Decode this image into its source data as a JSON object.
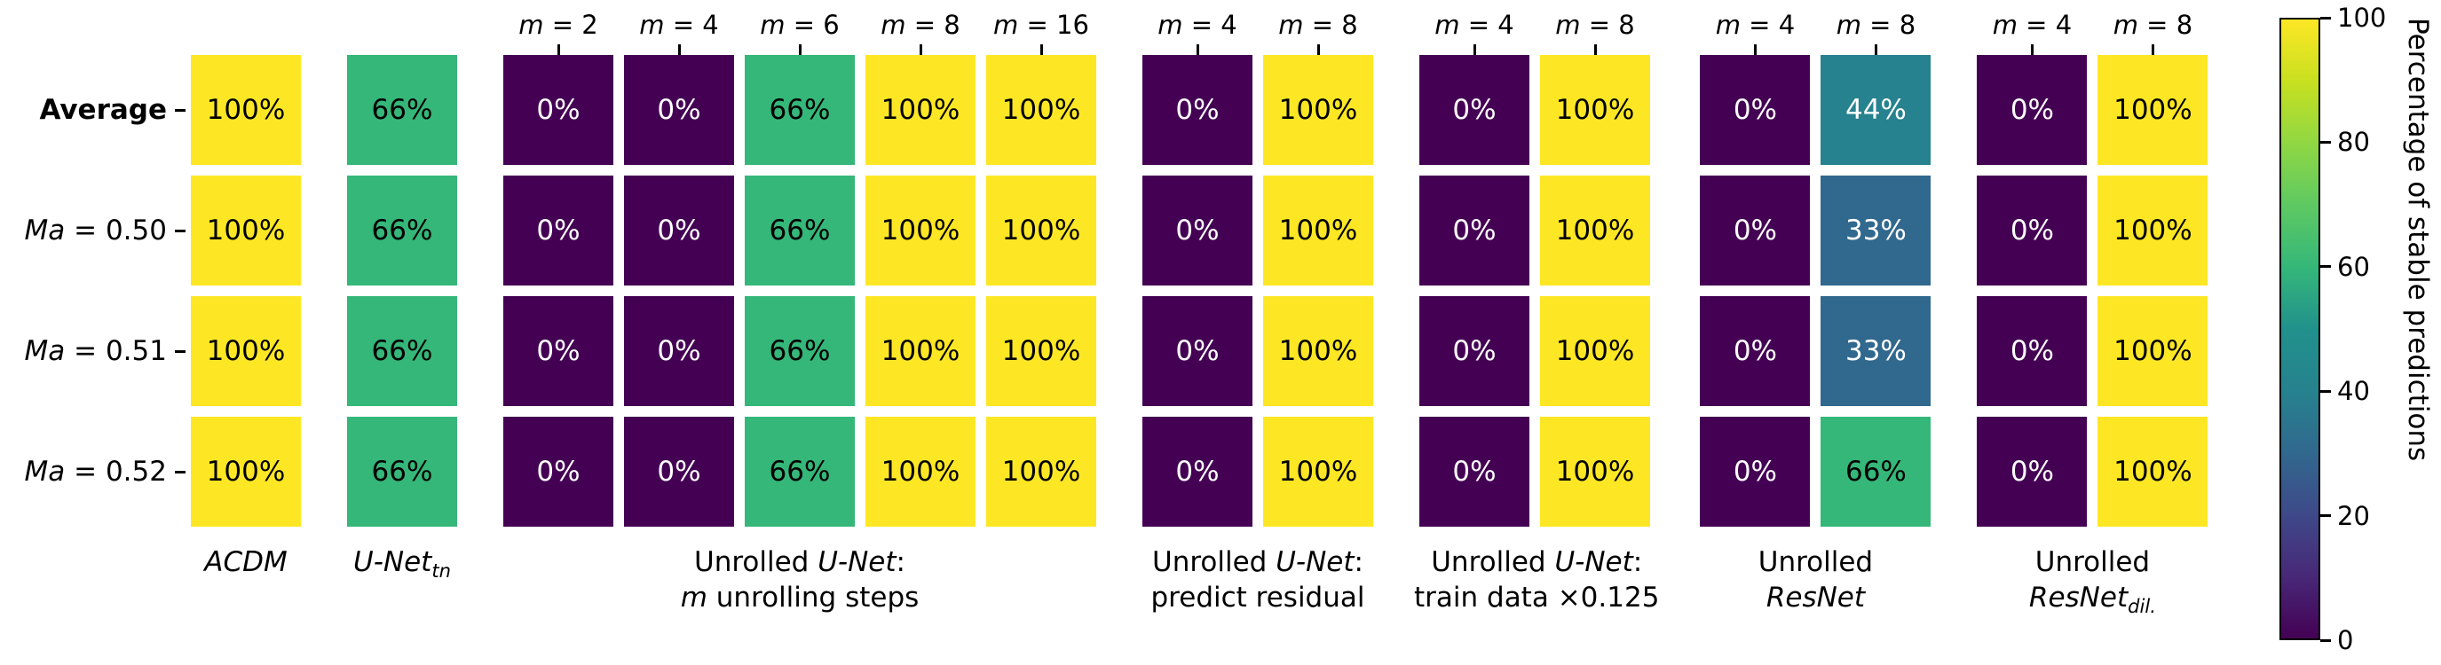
{
  "chart_data": {
    "type": "heatmap",
    "title": "",
    "value_suffix": "%",
    "colormap": "viridis",
    "rows": [
      {
        "name": "Average",
        "segments": [
          {
            "t": "Average",
            "b": true
          }
        ]
      },
      {
        "name": "Ma = 0.50",
        "segments": [
          {
            "t": "Ma",
            "i": true
          },
          {
            "t": " = 0.50"
          }
        ]
      },
      {
        "name": "Ma = 0.51",
        "segments": [
          {
            "t": "Ma",
            "i": true
          },
          {
            "t": " = 0.51"
          }
        ]
      },
      {
        "name": "Ma = 0.52",
        "segments": [
          {
            "t": "Ma",
            "i": true
          },
          {
            "t": " = 0.52"
          }
        ]
      }
    ],
    "groups": [
      {
        "id": "acdm",
        "name": "ACDM",
        "label_lines": [
          [
            {
              "t": "ACDM",
              "i": true
            }
          ]
        ],
        "columns": [
          {
            "name": "ACDM",
            "header": null,
            "values": [
              100,
              100,
              100,
              100
            ]
          }
        ]
      },
      {
        "id": "unet-tn",
        "name": "U-Net tn",
        "label_lines": [
          [
            {
              "t": "U-Net",
              "i": true
            },
            {
              "t": "tn",
              "i": true,
              "sub": true
            }
          ]
        ],
        "columns": [
          {
            "name": "U-Net tn",
            "header": null,
            "values": [
              66,
              66,
              66,
              66
            ]
          }
        ]
      },
      {
        "id": "unrolled-unet-steps",
        "name": "Unrolled U-Net: m unrolling steps",
        "label_lines": [
          [
            {
              "t": "Unrolled "
            },
            {
              "t": "U-Net",
              "i": true
            },
            {
              "t": ":"
            }
          ],
          [
            {
              "t": "m",
              "i": true
            },
            {
              "t": " unrolling steps"
            }
          ]
        ],
        "columns": [
          {
            "name": "m = 2",
            "header": [
              {
                "t": "m",
                "i": true
              },
              {
                "t": " = 2"
              }
            ],
            "values": [
              0,
              0,
              0,
              0
            ]
          },
          {
            "name": "m = 4",
            "header": [
              {
                "t": "m",
                "i": true
              },
              {
                "t": " = 4"
              }
            ],
            "values": [
              0,
              0,
              0,
              0
            ]
          },
          {
            "name": "m = 6",
            "header": [
              {
                "t": "m",
                "i": true
              },
              {
                "t": " = 6"
              }
            ],
            "values": [
              66,
              66,
              66,
              66
            ]
          },
          {
            "name": "m = 8",
            "header": [
              {
                "t": "m",
                "i": true
              },
              {
                "t": " = 8"
              }
            ],
            "values": [
              100,
              100,
              100,
              100
            ]
          },
          {
            "name": "m = 16",
            "header": [
              {
                "t": "m",
                "i": true
              },
              {
                "t": " = 16"
              }
            ],
            "values": [
              100,
              100,
              100,
              100
            ]
          }
        ]
      },
      {
        "id": "unrolled-unet-residual",
        "name": "Unrolled U-Net: predict residual",
        "label_lines": [
          [
            {
              "t": "Unrolled "
            },
            {
              "t": "U-Net",
              "i": true
            },
            {
              "t": ":"
            }
          ],
          [
            {
              "t": "predict residual"
            }
          ]
        ],
        "columns": [
          {
            "name": "m = 4",
            "header": [
              {
                "t": "m",
                "i": true
              },
              {
                "t": " = 4"
              }
            ],
            "values": [
              0,
              0,
              0,
              0
            ]
          },
          {
            "name": "m = 8",
            "header": [
              {
                "t": "m",
                "i": true
              },
              {
                "t": " = 8"
              }
            ],
            "values": [
              100,
              100,
              100,
              100
            ]
          }
        ]
      },
      {
        "id": "unrolled-unet-traindata",
        "name": "Unrolled U-Net: train data ×0.125",
        "label_lines": [
          [
            {
              "t": "Unrolled "
            },
            {
              "t": "U-Net",
              "i": true
            },
            {
              "t": ":"
            }
          ],
          [
            {
              "t": "train data ×0.125"
            }
          ]
        ],
        "columns": [
          {
            "name": "m = 4",
            "header": [
              {
                "t": "m",
                "i": true
              },
              {
                "t": " = 4"
              }
            ],
            "values": [
              0,
              0,
              0,
              0
            ]
          },
          {
            "name": "m = 8",
            "header": [
              {
                "t": "m",
                "i": true
              },
              {
                "t": " = 8"
              }
            ],
            "values": [
              100,
              100,
              100,
              100
            ]
          }
        ]
      },
      {
        "id": "unrolled-resnet",
        "name": "Unrolled ResNet",
        "label_lines": [
          [
            {
              "t": "Unrolled"
            }
          ],
          [
            {
              "t": "ResNet",
              "i": true
            }
          ]
        ],
        "columns": [
          {
            "name": "m = 4",
            "header": [
              {
                "t": "m",
                "i": true
              },
              {
                "t": " = 4"
              }
            ],
            "values": [
              0,
              0,
              0,
              0
            ]
          },
          {
            "name": "m = 8",
            "header": [
              {
                "t": "m",
                "i": true
              },
              {
                "t": " = 8"
              }
            ],
            "values": [
              44,
              33,
              33,
              66
            ]
          }
        ]
      },
      {
        "id": "unrolled-resnet-dil",
        "name": "Unrolled ResNet dil.",
        "label_lines": [
          [
            {
              "t": "Unrolled"
            }
          ],
          [
            {
              "t": "ResNet",
              "i": true
            },
            {
              "t": "dil.",
              "i": true,
              "sub": true
            }
          ]
        ],
        "columns": [
          {
            "name": "m = 4",
            "header": [
              {
                "t": "m",
                "i": true
              },
              {
                "t": " = 4"
              }
            ],
            "values": [
              0,
              0,
              0,
              0
            ]
          },
          {
            "name": "m = 8",
            "header": [
              {
                "t": "m",
                "i": true
              },
              {
                "t": " = 8"
              }
            ],
            "values": [
              100,
              100,
              100,
              100
            ]
          }
        ]
      }
    ],
    "colors": {
      "0": "#440154",
      "33": "#31688e",
      "44": "#26828e",
      "66": "#35b779",
      "100": "#fde725"
    },
    "text_colors": {
      "dark_cell": "#ffffff",
      "light_cell": "#000000"
    },
    "colorbar": {
      "label": "Percentage of stable predictions",
      "min": 0,
      "max": 100,
      "ticks": [
        0,
        20,
        40,
        60,
        80,
        100
      ]
    }
  }
}
